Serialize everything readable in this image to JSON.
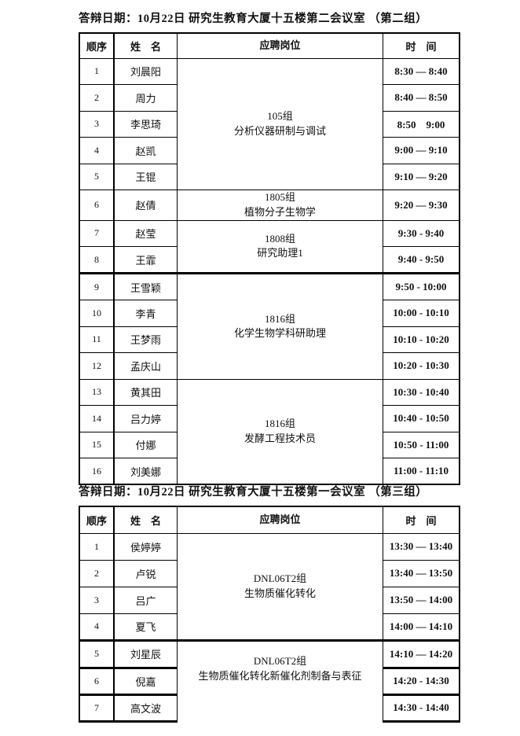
{
  "section1": {
    "title": "答辩日期：10月22日 研究生教育大厦十五楼第二会议室 （第二组）",
    "header": {
      "order": "顺序",
      "name": "姓　名",
      "position": "应聘岗位",
      "time": "时　间"
    },
    "rows": [
      {
        "no": "1",
        "name": "刘晨阳",
        "time": "8:30 — 8:40"
      },
      {
        "no": "2",
        "name": "周力",
        "time": "8:40 — 8:50"
      },
      {
        "no": "3",
        "name": "李思琦",
        "time": "8:50　9:00"
      },
      {
        "no": "4",
        "name": "赵凯",
        "time": "9:00 — 9:10"
      },
      {
        "no": "5",
        "name": "王锟",
        "time": "9:10 — 9:20"
      },
      {
        "no": "6",
        "name": "赵倩",
        "time": "9:20 — 9:30"
      },
      {
        "no": "7",
        "name": "赵莹",
        "time": "9:30 - 9:40"
      },
      {
        "no": "8",
        "name": "王霏",
        "time": "9:40 - 9:50"
      },
      {
        "no": "9",
        "name": "王雪颖",
        "time": "9:50 - 10:00"
      },
      {
        "no": "10",
        "name": "李青",
        "time": "10:00 - 10:10"
      },
      {
        "no": "11",
        "name": "王梦雨",
        "time": "10:10 - 10:20"
      },
      {
        "no": "12",
        "name": "孟庆山",
        "time": "10:20 - 10:30"
      },
      {
        "no": "13",
        "name": "黄其田",
        "time": "10:30 - 10:40"
      },
      {
        "no": "14",
        "name": "吕力婷",
        "time": "10:40 - 10:50"
      },
      {
        "no": "15",
        "name": "付娜",
        "time": "10:50 - 11:00"
      },
      {
        "no": "16",
        "name": "刘美娜",
        "time": "11:00 - 11:10"
      }
    ],
    "groups": {
      "g105": {
        "group": "105组",
        "role": "分析仪器研制与调试"
      },
      "g1805": {
        "group": "1805组",
        "role": "植物分子生物学"
      },
      "g1808": {
        "group": "1808组",
        "role": "研究助理1"
      },
      "g1816a": {
        "group": "1816组",
        "role": "化学生物学科研助理"
      },
      "g1816b": {
        "group": "1816组",
        "role": "发酵工程技术员"
      }
    }
  },
  "section2": {
    "title": "答辩日期：10月22日 研究生教育大厦十五楼第一会议室 （第三组）",
    "header": {
      "order": "顺序",
      "name": "姓　名",
      "position": "应聘岗位",
      "time": "时　间"
    },
    "rows": [
      {
        "no": "1",
        "name": "侯婷婷",
        "time": "13:30 — 13:40"
      },
      {
        "no": "2",
        "name": "卢锐",
        "time": "13:40 — 13:50"
      },
      {
        "no": "3",
        "name": "吕广",
        "time": "13:50 — 14:00"
      },
      {
        "no": "4",
        "name": "夏飞",
        "time": "14:00 — 14:10"
      },
      {
        "no": "5",
        "name": "刘星辰",
        "time": "14:10 — 14:20"
      },
      {
        "no": "6",
        "name": "倪嘉",
        "time": "14:20 - 14:30"
      },
      {
        "no": "7",
        "name": "高文波",
        "time": "14:30 - 14:40"
      }
    ],
    "groups": {
      "gA": {
        "group": "DNL06T2组",
        "role": "生物质催化转化"
      },
      "gB": {
        "group": "DNL06T2组",
        "role": "生物质催化转化新催化剂制备与表征"
      }
    }
  }
}
